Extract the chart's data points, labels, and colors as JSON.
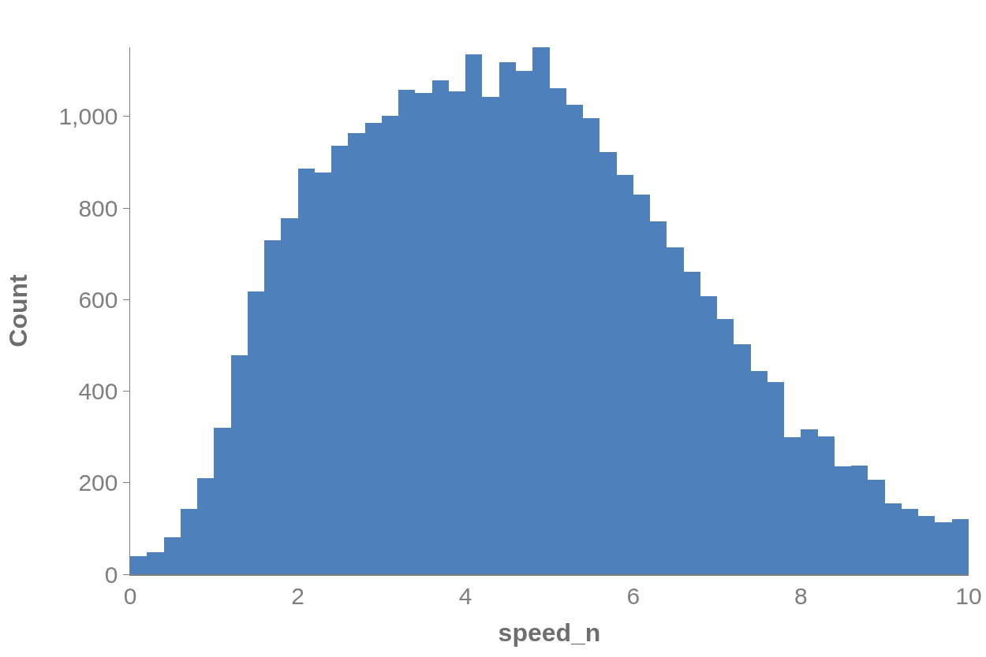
{
  "chart_data": {
    "type": "histogram",
    "xlabel": "speed_n",
    "ylabel": "Count",
    "color": "#4e80bb",
    "bins": [
      0,
      0.2,
      0.4,
      0.6,
      0.8,
      1,
      1.2,
      1.4,
      1.6,
      1.8,
      2,
      2.2,
      2.4,
      2.6,
      2.8,
      3,
      3.2,
      3.4,
      3.6,
      3.8,
      4,
      4.2,
      4.4,
      4.6,
      4.8,
      5,
      5.2,
      5.4,
      5.6,
      5.8,
      6,
      6.2,
      6.4,
      6.6,
      6.8,
      7,
      7.2,
      7.4,
      7.6,
      7.8,
      8,
      8.2,
      8.4,
      8.6,
      8.8,
      9,
      9.2,
      9.4,
      9.6,
      9.8,
      10
    ],
    "values": [
      40,
      48,
      81,
      143,
      210,
      320,
      478,
      618,
      730,
      778,
      886,
      878,
      936,
      964,
      986,
      1002,
      1058,
      1052,
      1078,
      1054,
      1136,
      1043,
      1119,
      1100,
      1151,
      1062,
      1026,
      997,
      922,
      873,
      830,
      771,
      714,
      661,
      608,
      558,
      503,
      444,
      420,
      300,
      316,
      301,
      235,
      238,
      207,
      154,
      142,
      128,
      113,
      121
    ],
    "xlim": [
      0,
      10
    ],
    "xticks": [
      0,
      2,
      4,
      6,
      8,
      10
    ],
    "ylim": [
      0,
      1151
    ],
    "yticks": [
      0,
      200,
      400,
      600,
      800,
      {
        "value": 1000,
        "label": "1,000"
      }
    ],
    "grid": false
  }
}
